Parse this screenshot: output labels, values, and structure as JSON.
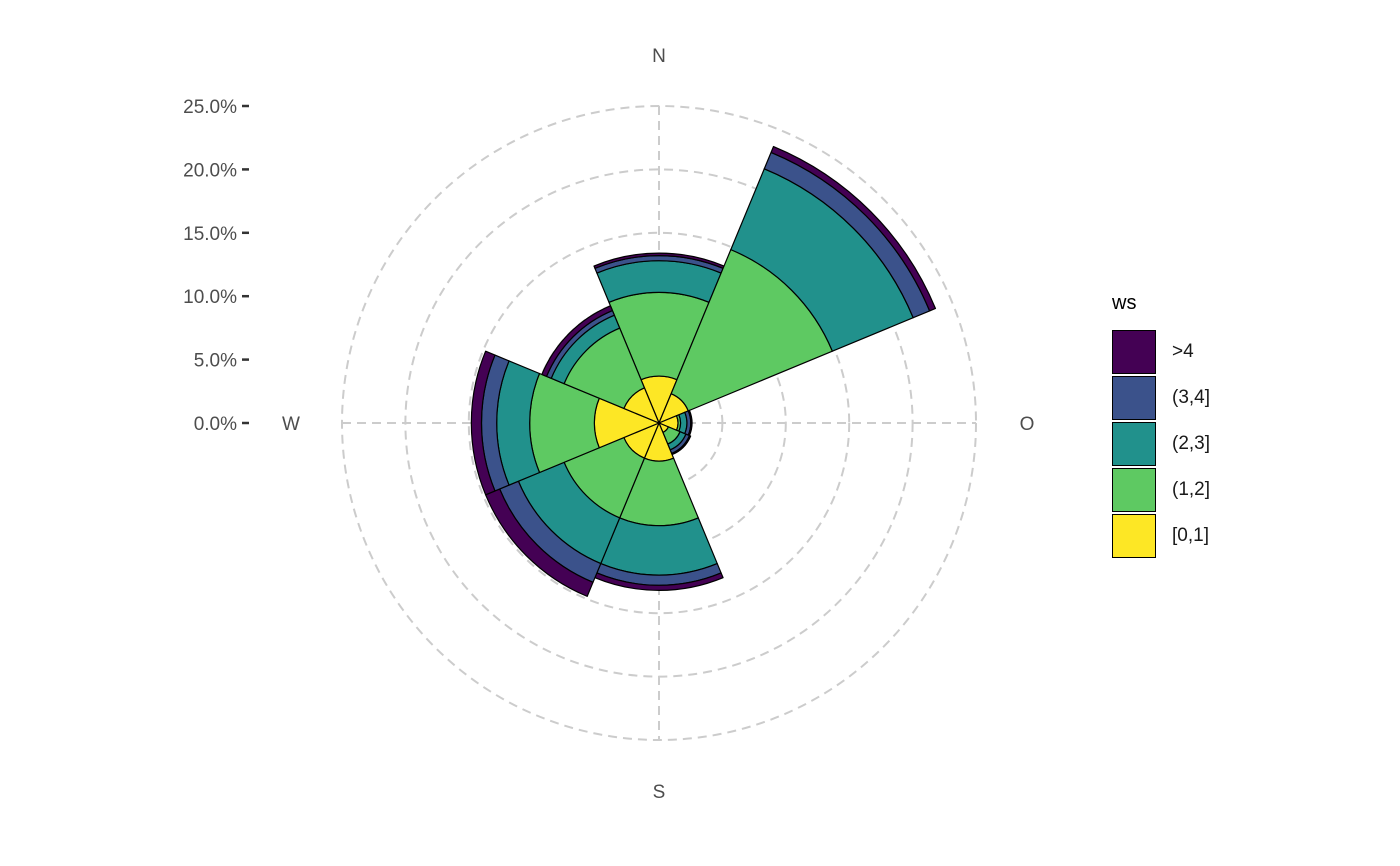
{
  "chart_data": {
    "type": "windrose",
    "xlabel": "",
    "ylabel": "",
    "directions": [
      "N",
      "O",
      "S",
      "W"
    ],
    "sectors_deg": [
      0,
      45,
      90,
      135,
      180,
      225,
      270,
      315
    ],
    "sector_width_deg": 45,
    "y_ticks": [
      "0.0%",
      "5.0%",
      "10.0%",
      "15.0%",
      "20.0%",
      "25.0%"
    ],
    "ylim": [
      0,
      25
    ],
    "grid": true,
    "legend_title": "ws",
    "legend_position": "right",
    "bins": [
      {
        "name": "[0,1]",
        "color": "#FDE725"
      },
      {
        "name": "(1,2]",
        "color": "#5EC962"
      },
      {
        "name": "(2,3]",
        "color": "#21918C"
      },
      {
        "name": "(3,4]",
        "color": "#3B528B"
      },
      {
        "name": ">4",
        "color": "#440154"
      }
    ],
    "data": [
      {
        "direction_deg": 0,
        "values": [
          3.7,
          6.6,
          2.5,
          0.4,
          0.2
        ]
      },
      {
        "direction_deg": 45,
        "values": [
          2.5,
          12.3,
          6.9,
          1.4,
          0.5
        ]
      },
      {
        "direction_deg": 90,
        "values": [
          1.5,
          0.2,
          0.5,
          0.3,
          0.1
        ]
      },
      {
        "direction_deg": 135,
        "values": [
          0.8,
          1.0,
          0.5,
          0.3,
          0.1
        ]
      },
      {
        "direction_deg": 180,
        "values": [
          3.0,
          5.1,
          3.9,
          0.8,
          0.4
        ]
      },
      {
        "direction_deg": 225,
        "values": [
          3.0,
          5.1,
          3.9,
          1.6,
          1.2
        ]
      },
      {
        "direction_deg": 270,
        "values": [
          5.1,
          5.1,
          2.6,
          1.2,
          0.8
        ]
      },
      {
        "direction_deg": 315,
        "values": [
          3.0,
          5.1,
          1.1,
          0.4,
          0.4
        ]
      }
    ]
  }
}
